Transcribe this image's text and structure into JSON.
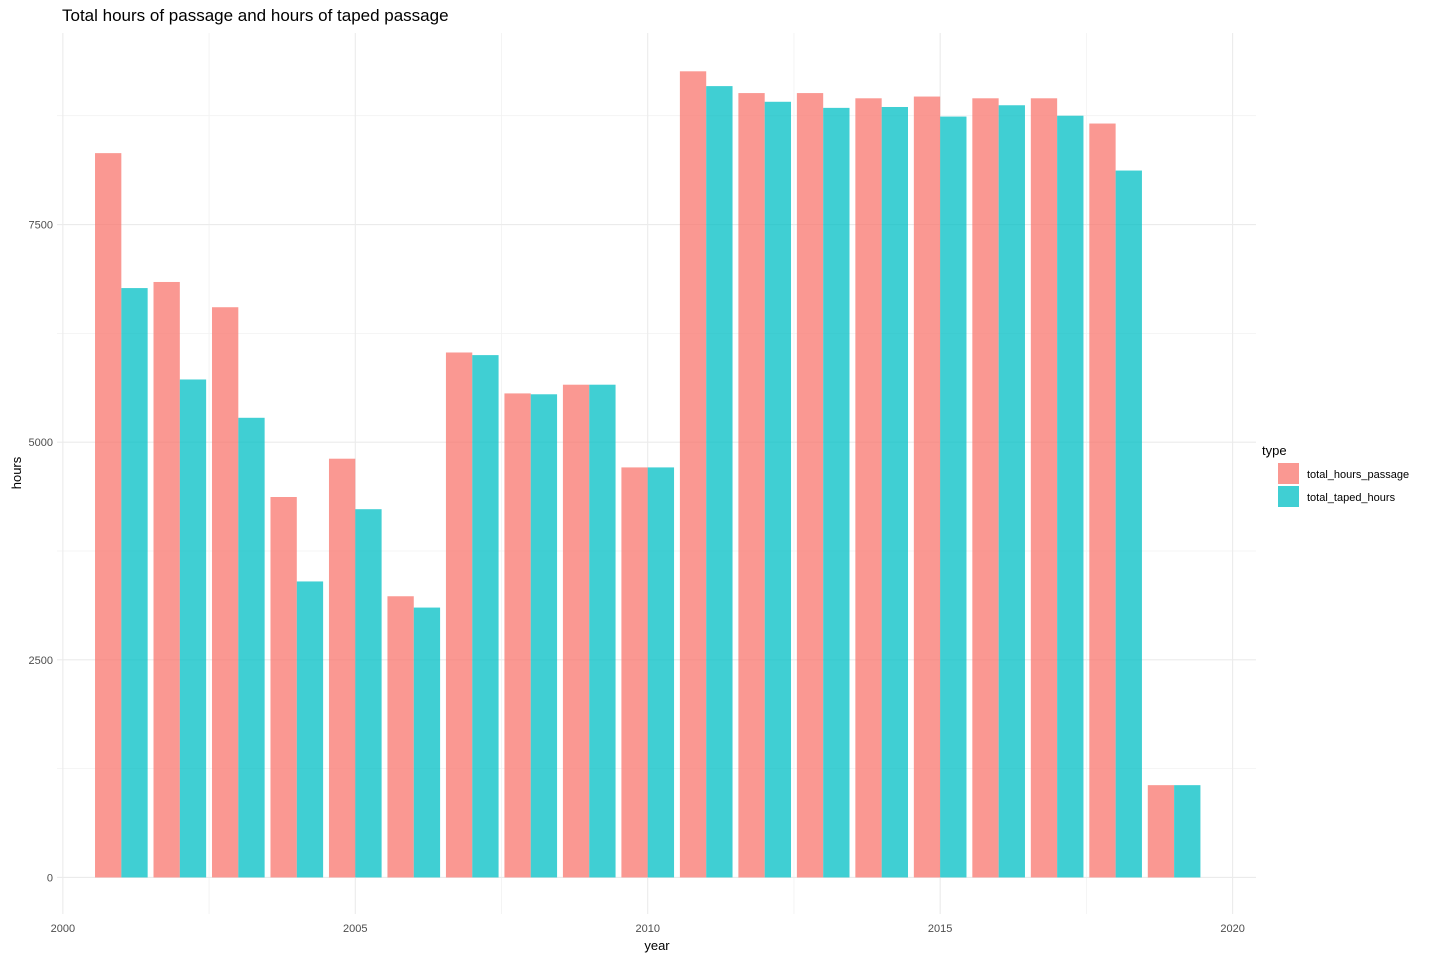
{
  "chart_data": {
    "type": "bar",
    "title": "Total hours of passage and hours of taped passage",
    "xlabel": "year",
    "ylabel": "hours",
    "x": [
      2001,
      2002,
      2003,
      2004,
      2005,
      2006,
      2007,
      2008,
      2009,
      2010,
      2011,
      2012,
      2013,
      2014,
      2015,
      2016,
      2017,
      2018,
      2019
    ],
    "series": [
      {
        "name": "total_hours_passage",
        "color": "#F8766D",
        "values": [
          8320,
          6840,
          6550,
          4370,
          4810,
          3230,
          6030,
          5560,
          5660,
          4710,
          9260,
          9010,
          9010,
          8950,
          8970,
          8950,
          8950,
          8660,
          1060
        ]
      },
      {
        "name": "total_taped_hours",
        "color": "#00BFC4",
        "values": [
          6770,
          5720,
          5280,
          3400,
          4230,
          3100,
          6000,
          5550,
          5660,
          4710,
          9090,
          8910,
          8840,
          8850,
          8740,
          8870,
          8750,
          8120,
          1060
        ]
      }
    ],
    "xlim": [
      1999.9,
      2020.4
    ],
    "ylim": [
      -420,
      9700
    ],
    "x_ticks": [
      2000,
      2005,
      2010,
      2015,
      2020
    ],
    "y_ticks": [
      0,
      2500,
      5000,
      7500
    ],
    "grid": true,
    "legend": {
      "title": "type",
      "position": "right"
    }
  }
}
